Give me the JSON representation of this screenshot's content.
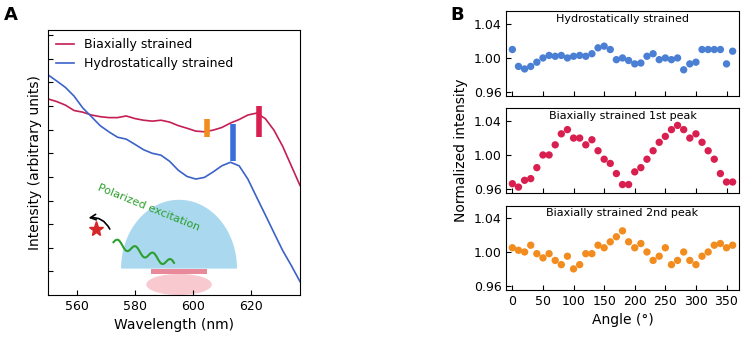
{
  "chart_data": [
    {
      "type": "line",
      "panel_label": "A",
      "x_label": "Wavelength (nm)",
      "y_label": "Intensity (arbitrary units)",
      "x": [
        550,
        553,
        556,
        559,
        562,
        565,
        568,
        571,
        574,
        577,
        580,
        583,
        586,
        589,
        592,
        595,
        598,
        601,
        604,
        607,
        610,
        613,
        616,
        619,
        622,
        625,
        628,
        631,
        634,
        637
      ],
      "series": [
        {
          "name": "Biaxially strained",
          "color": "#c41e52",
          "values": [
            0.83,
            0.819,
            0.804,
            0.781,
            0.774,
            0.762,
            0.755,
            0.751,
            0.751,
            0.758,
            0.747,
            0.74,
            0.736,
            0.74,
            0.732,
            0.717,
            0.706,
            0.694,
            0.691,
            0.698,
            0.709,
            0.728,
            0.743,
            0.762,
            0.77,
            0.747,
            0.698,
            0.63,
            0.547,
            0.464
          ]
        },
        {
          "name": "Hydrostatically strained",
          "color": "#3b62c9",
          "values": [
            0.932,
            0.906,
            0.879,
            0.842,
            0.792,
            0.755,
            0.717,
            0.691,
            0.668,
            0.66,
            0.638,
            0.615,
            0.6,
            0.592,
            0.566,
            0.528,
            0.502,
            0.491,
            0.498,
            0.521,
            0.547,
            0.562,
            0.547,
            0.491,
            0.415,
            0.34,
            0.264,
            0.189,
            0.125,
            0.057
          ]
        }
      ],
      "peak_marks": [
        {
          "x": 605,
          "y_range": [
            0.668,
            0.747
          ],
          "color": "#f28c1e"
        },
        {
          "x": 623,
          "y_range": [
            0.668,
            0.8
          ],
          "color": "#d81f4f"
        },
        {
          "x": 614,
          "y_range": [
            0.566,
            0.725
          ],
          "color": "#3a6fd8"
        }
      ],
      "annotations": [
        "Polarized excitation"
      ],
      "xlim": [
        550,
        637
      ],
      "xticks": [
        560,
        580,
        600,
        620
      ],
      "ylim": [
        0,
        1.12
      ],
      "yticks": [
        0.1,
        0.2,
        0.3,
        0.4,
        0.5,
        0.6,
        0.7,
        0.8,
        0.9,
        1.0,
        1.1
      ],
      "tick_labels": "x",
      "legend": "upper left"
    },
    {
      "type": "scatter",
      "panel_label": "B",
      "title": "Hydrostatically strained",
      "x": [
        0,
        10,
        20,
        30,
        40,
        50,
        60,
        70,
        80,
        90,
        100,
        110,
        120,
        130,
        140,
        150,
        160,
        170,
        180,
        190,
        200,
        210,
        220,
        230,
        240,
        250,
        260,
        270,
        280,
        290,
        300,
        310,
        320,
        330,
        340,
        350,
        360
      ],
      "values": [
        1.01,
        0.99,
        0.987,
        0.99,
        0.995,
        1.0,
        1.003,
        1.002,
        1.003,
        1.0,
        1.002,
        1.003,
        1.002,
        1.005,
        1.012,
        1.014,
        1.01,
        0.998,
        1.0,
        0.997,
        0.993,
        0.994,
        1.002,
        1.005,
        0.998,
        1.0,
        0.998,
        1.0,
        0.986,
        0.993,
        0.995,
        1.01,
        1.01,
        1.01,
        1.01,
        0.993,
        1.008
      ],
      "color": "#4a7fd4",
      "marker": "circle",
      "xlim": [
        -10,
        370
      ],
      "xticks": [
        0,
        50,
        100,
        150,
        200,
        250,
        300,
        350
      ],
      "ylim": [
        0.955,
        1.055
      ],
      "yticks": [
        {
          "value": 0.96,
          "label": "0.96"
        },
        {
          "value": 1.0,
          "label": "1.00"
        },
        {
          "value": 1.04,
          "label": "1.04"
        }
      ],
      "tick_labels": "y"
    },
    {
      "type": "scatter",
      "title": "Biaxially strained 1st peak",
      "y_label": "Normalized intensity",
      "x": [
        0,
        10,
        20,
        30,
        40,
        50,
        60,
        70,
        80,
        90,
        100,
        110,
        120,
        130,
        140,
        150,
        160,
        170,
        180,
        190,
        200,
        210,
        220,
        230,
        240,
        250,
        260,
        270,
        280,
        290,
        300,
        310,
        320,
        330,
        340,
        350,
        360
      ],
      "values": [
        0.966,
        0.962,
        0.97,
        0.972,
        0.985,
        1.0,
        1.0,
        1.012,
        1.025,
        1.03,
        1.02,
        1.02,
        1.012,
        1.018,
        1.005,
        0.995,
        0.99,
        0.978,
        0.965,
        0.965,
        0.98,
        0.985,
        0.995,
        1.005,
        1.015,
        1.022,
        1.03,
        1.035,
        1.03,
        1.02,
        1.025,
        1.015,
        1.005,
        0.995,
        0.978,
        0.968,
        0.968
      ],
      "color": "#d81f4f",
      "marker": "circle",
      "xlim": [
        -10,
        370
      ],
      "xticks": [
        0,
        50,
        100,
        150,
        200,
        250,
        300,
        350
      ],
      "ylim": [
        0.955,
        1.055
      ],
      "yticks": [
        {
          "value": 0.96,
          "label": "0.96"
        },
        {
          "value": 1.0,
          "label": "1.00"
        },
        {
          "value": 1.04,
          "label": "1.04"
        }
      ],
      "tick_labels": "y"
    },
    {
      "type": "scatter",
      "title": "Biaxially strained 2nd peak",
      "x_label": "Angle (°)",
      "x": [
        0,
        10,
        20,
        30,
        40,
        50,
        60,
        70,
        80,
        90,
        100,
        110,
        120,
        130,
        140,
        150,
        160,
        170,
        180,
        190,
        200,
        210,
        220,
        230,
        240,
        250,
        260,
        270,
        280,
        290,
        300,
        310,
        320,
        330,
        340,
        350,
        360
      ],
      "values": [
        1.005,
        1.002,
        1.0,
        1.008,
        0.998,
        0.993,
        0.998,
        0.99,
        0.985,
        0.995,
        0.98,
        0.985,
        0.998,
        0.998,
        1.008,
        1.005,
        1.012,
        1.018,
        1.025,
        1.012,
        1.005,
        1.01,
        1.0,
        0.99,
        0.995,
        1.005,
        0.985,
        0.99,
        1.0,
        0.99,
        0.985,
        0.995,
        1.0,
        1.008,
        1.01,
        1.005,
        1.008
      ],
      "color": "#f28c1e",
      "marker": "circle",
      "xlim": [
        -10,
        370
      ],
      "xticks": [
        0,
        50,
        100,
        150,
        200,
        250,
        300,
        350
      ],
      "ylim": [
        0.955,
        1.055
      ],
      "yticks": [
        {
          "value": 0.96,
          "label": "0.96"
        },
        {
          "value": 1.0,
          "label": "1.00"
        },
        {
          "value": 1.04,
          "label": "1.04"
        }
      ]
    }
  ]
}
